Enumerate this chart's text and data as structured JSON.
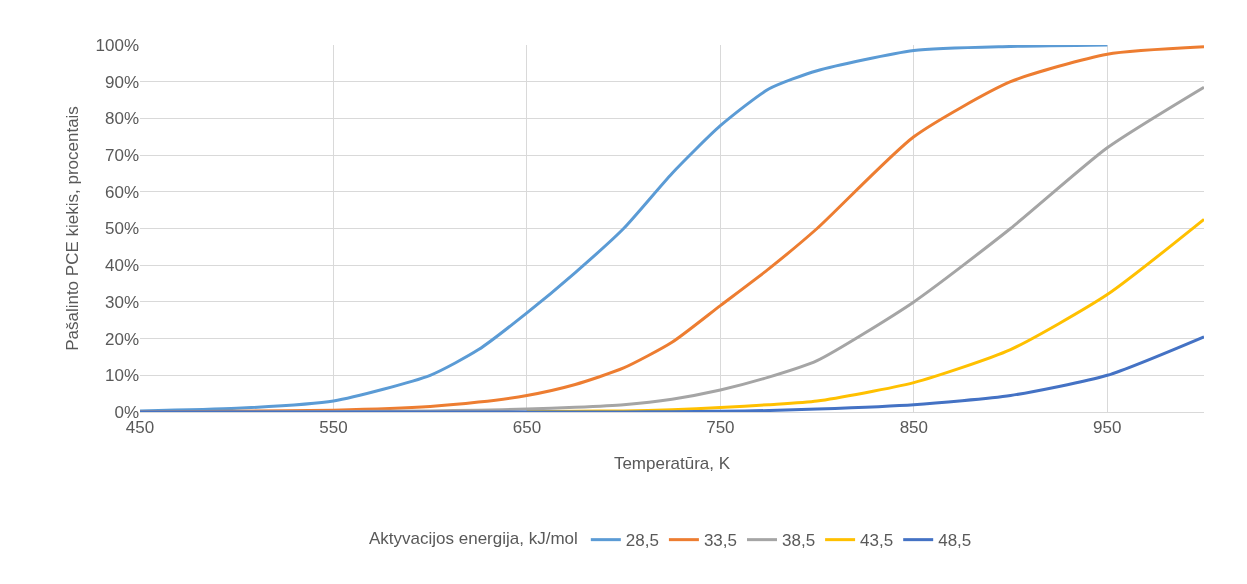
{
  "chart_data": {
    "type": "line",
    "xlabel": "Temperatūra, K",
    "ylabel": "Pašalinto PCE kiekis, procentais",
    "legend_title": "Aktyvacijos energija, kJ/mol",
    "legend": "bottom",
    "grid": true,
    "marker": "none",
    "line_style": "solid",
    "x": [
      450,
      500,
      550,
      600,
      625,
      650,
      675,
      700,
      725,
      750,
      775,
      800,
      850,
      900,
      950,
      1000
    ],
    "xlim": [
      450,
      1000
    ],
    "xticks": [
      450,
      550,
      650,
      750,
      850,
      950
    ],
    "ylim": [
      0,
      100
    ],
    "yticks": [
      {
        "value": 0,
        "label": "0%"
      },
      {
        "value": 10,
        "label": "10%"
      },
      {
        "value": 20,
        "label": "20%"
      },
      {
        "value": 30,
        "label": "30%"
      },
      {
        "value": 40,
        "label": "40%"
      },
      {
        "value": 50,
        "label": "50%"
      },
      {
        "value": 60,
        "label": "60%"
      },
      {
        "value": 70,
        "label": "70%"
      },
      {
        "value": 80,
        "label": "80%"
      },
      {
        "value": 90,
        "label": "90%"
      },
      {
        "value": 100,
        "label": "100%"
      }
    ],
    "series": [
      {
        "name": "28,5",
        "color": "#5b9bd5",
        "values": [
          0.3,
          1,
          3,
          10,
          17,
          27,
          38,
          50,
          65,
          78,
          88,
          93,
          98.5,
          99.6,
          100,
          null
        ]
      },
      {
        "name": "33,5",
        "color": "#ed7d31",
        "values": [
          0,
          0.2,
          0.5,
          1.5,
          2.7,
          4.5,
          7.5,
          12,
          19,
          29,
          39,
          50,
          75,
          90,
          97.5,
          99.5
        ]
      },
      {
        "name": "38,5",
        "color": "#a5a5a5",
        "values": [
          0,
          0,
          0.1,
          0.3,
          0.5,
          0.8,
          1.3,
          2,
          3.5,
          6,
          9.5,
          14,
          30,
          50,
          72,
          88.5
        ]
      },
      {
        "name": "43,5",
        "color": "#ffc000",
        "values": [
          null,
          null,
          null,
          null,
          null,
          0.1,
          0.2,
          0.3,
          0.6,
          1.2,
          2,
          3,
          8,
          17,
          32,
          52.5
        ]
      },
      {
        "name": "48,5",
        "color": "#4472c4",
        "values": [
          0,
          0,
          0,
          0,
          0,
          0,
          0,
          0,
          0.1,
          0.2,
          0.4,
          0.8,
          2,
          4.5,
          10,
          20.5
        ]
      }
    ]
  }
}
